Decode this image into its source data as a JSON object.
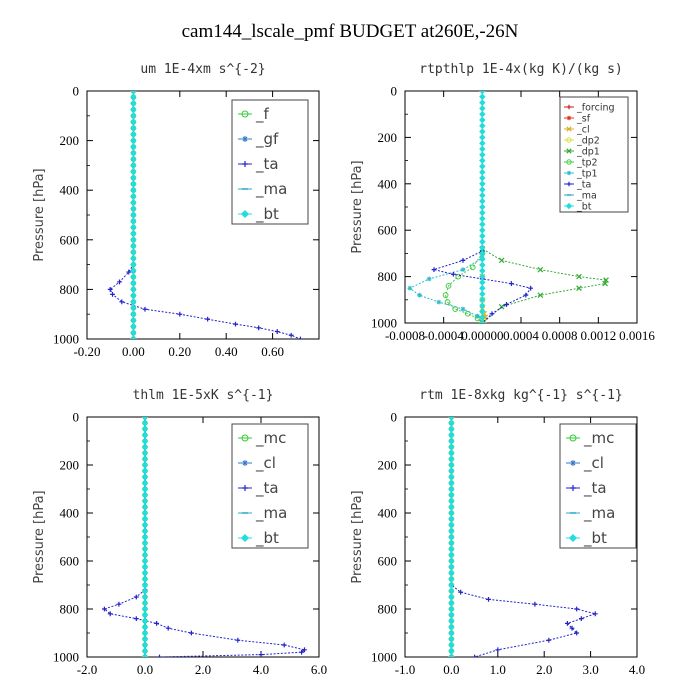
{
  "figure": {
    "title": "cam144_lscale_pmf  BUDGET at260E,-26N"
  },
  "chart_data": [
    {
      "type": "line",
      "title": "um  1E-4xm s^{-2}",
      "ylabel": "Pressure [hPa]",
      "xlabel": "",
      "xlim": [
        -0.2,
        0.8
      ],
      "ylim": [
        1000,
        0
      ],
      "x_tick_labels": [
        "-0.20",
        "0.00",
        "0.20",
        "0.40",
        "0.60"
      ],
      "x_tick_values": [
        -0.2,
        0.0,
        0.2,
        0.4,
        0.6
      ],
      "y_tick_labels": [
        "0",
        "200",
        "400",
        "600",
        "800",
        "1000"
      ],
      "y_tick_values": [
        0,
        200,
        400,
        600,
        800,
        1000
      ],
      "legend_position": "top-right",
      "legend": [
        "_f",
        "_gf",
        "_ta",
        "_ma",
        "_bt"
      ],
      "series": [
        {
          "name": "_f",
          "color": "#33cc33",
          "marker": "o",
          "x": [
            0,
            0,
            0,
            0,
            0,
            0,
            0,
            0,
            0,
            0,
            0
          ],
          "y": [
            0,
            100,
            200,
            300,
            400,
            500,
            600,
            700,
            800,
            900,
            1000
          ]
        },
        {
          "name": "_gf",
          "color": "#3377cc",
          "marker": "*",
          "x": [
            0,
            0,
            0,
            0,
            0,
            0,
            0,
            0,
            0,
            0,
            0
          ],
          "y": [
            0,
            100,
            200,
            300,
            400,
            500,
            600,
            700,
            800,
            900,
            1000
          ]
        },
        {
          "name": "_ta",
          "color": "#2222cc",
          "marker": "+",
          "x": [
            0,
            0,
            -0.02,
            -0.06,
            -0.1,
            -0.09,
            -0.05,
            0.05,
            0.2,
            0.32,
            0.44,
            0.54,
            0.62,
            0.68,
            0.72
          ],
          "y": [
            0,
            700,
            730,
            770,
            800,
            820,
            850,
            880,
            900,
            920,
            940,
            955,
            970,
            985,
            1000
          ]
        },
        {
          "name": "_ma",
          "color": "#33aacc",
          "marker": "-",
          "x": [
            0,
            0,
            0,
            0,
            0,
            0,
            0,
            0,
            0,
            0,
            0
          ],
          "y": [
            0,
            100,
            200,
            300,
            400,
            500,
            600,
            700,
            800,
            900,
            1000
          ]
        },
        {
          "name": "_bt",
          "color": "#22dddd",
          "marker": "D",
          "x": [
            0,
            0,
            0,
            0,
            0,
            0,
            0,
            0,
            0,
            0,
            0
          ],
          "y": [
            0,
            100,
            200,
            300,
            400,
            500,
            600,
            700,
            800,
            900,
            1000
          ]
        }
      ]
    },
    {
      "type": "line",
      "title": "rtpthlp  1E-4x(kg K)/(kg s)",
      "ylabel": "Pressure [hPa]",
      "xlabel": "",
      "xlim": [
        -0.0008,
        0.0016
      ],
      "ylim": [
        1000,
        0
      ],
      "x_tick_labels": [
        "-0.0008",
        "-0.0004",
        "0.00000",
        "0.0004",
        "0.0008",
        "0.0012",
        "0.0016"
      ],
      "x_tick_values": [
        -0.0008,
        -0.0004,
        0.0,
        0.0004,
        0.0008,
        0.0012,
        0.0016
      ],
      "y_tick_labels": [
        "0",
        "200",
        "400",
        "600",
        "800",
        "1000"
      ],
      "y_tick_values": [
        0,
        200,
        400,
        600,
        800,
        1000
      ],
      "legend_position": "top-right",
      "legend": [
        "_forcing",
        "_sf",
        "_cl",
        "_dp2",
        "_dp1",
        "_tp2",
        "_tp1",
        "_ta",
        "_ma",
        "_bt"
      ],
      "series": [
        {
          "name": "_forcing",
          "color": "#cc2222",
          "marker": "+",
          "x": [
            0,
            0,
            0,
            0,
            0,
            0,
            0,
            0,
            0,
            0,
            0
          ],
          "y": [
            0,
            100,
            200,
            300,
            400,
            500,
            600,
            700,
            800,
            900,
            1000
          ]
        },
        {
          "name": "_sf",
          "color": "#dd3322",
          "marker": "*",
          "x": [
            0,
            0,
            0,
            0,
            0,
            0,
            0,
            0,
            0,
            0,
            0
          ],
          "y": [
            0,
            100,
            200,
            300,
            400,
            500,
            600,
            700,
            800,
            900,
            1000
          ]
        },
        {
          "name": "_cl",
          "color": "#ddaa22",
          "marker": "x",
          "x": [
            0,
            0,
            0,
            0,
            2e-05,
            3e-05,
            2e-05,
            0
          ],
          "y": [
            0,
            800,
            900,
            940,
            960,
            975,
            990,
            1000
          ]
        },
        {
          "name": "_dp2",
          "color": "#dddd44",
          "marker": "o",
          "x": [
            0,
            0,
            0,
            0,
            1e-05,
            0
          ],
          "y": [
            0,
            900,
            950,
            980,
            990,
            1000
          ]
        },
        {
          "name": "_dp1",
          "color": "#33aa33",
          "marker": "x",
          "x": [
            0,
            0,
            0.0002,
            0.0006,
            0.001,
            0.00128,
            0.00127,
            0.001,
            0.0006,
            0.0002,
            0
          ],
          "y": [
            0,
            680,
            730,
            770,
            800,
            815,
            830,
            850,
            880,
            930,
            1000
          ]
        },
        {
          "name": "_tp2",
          "color": "#44cc44",
          "marker": "o",
          "x": [
            0,
            0,
            -0.0001,
            -0.00025,
            -0.00035,
            -0.00038,
            -0.00036,
            -0.00028,
            -0.00015,
            -5e-05,
            0
          ],
          "y": [
            0,
            700,
            760,
            800,
            840,
            880,
            910,
            940,
            960,
            980,
            1000
          ]
        },
        {
          "name": "_tp1",
          "color": "#33bbcc",
          "marker": "*",
          "x": [
            0,
            0,
            -0.0002,
            -0.00055,
            -0.00075,
            -0.00065,
            -0.00045,
            -0.0002,
            -5e-05,
            0
          ],
          "y": [
            0,
            720,
            770,
            810,
            850,
            880,
            910,
            940,
            970,
            1000
          ]
        },
        {
          "name": "_ta",
          "color": "#2222cc",
          "marker": "+",
          "x": [
            0,
            0,
            -0.0002,
            -0.0005,
            -0.0003,
            0,
            0.0003,
            0.0005,
            0.00045,
            0.00025,
            0.0001,
            0
          ],
          "y": [
            0,
            690,
            730,
            770,
            790,
            810,
            830,
            850,
            880,
            920,
            960,
            1000
          ]
        },
        {
          "name": "_ma",
          "color": "#33aacc",
          "marker": "-",
          "x": [
            0,
            0,
            0,
            0,
            0,
            0,
            0,
            0,
            0,
            0,
            0
          ],
          "y": [
            0,
            100,
            200,
            300,
            400,
            500,
            600,
            700,
            800,
            900,
            1000
          ]
        },
        {
          "name": "_bt",
          "color": "#22dddd",
          "marker": "D",
          "x": [
            0,
            0,
            0,
            0,
            0,
            0,
            0,
            0,
            0,
            0,
            0
          ],
          "y": [
            0,
            100,
            200,
            300,
            400,
            500,
            600,
            700,
            800,
            900,
            1000
          ]
        }
      ]
    },
    {
      "type": "line",
      "title": "thlm  1E-5xK s^{-1}",
      "ylabel": "Pressure [hPa]",
      "xlabel": "",
      "xlim": [
        -2.0,
        6.0
      ],
      "ylim": [
        1000,
        0
      ],
      "x_tick_labels": [
        "-2.0",
        "0.0",
        "2.0",
        "4.0",
        "6.0"
      ],
      "x_tick_values": [
        -2.0,
        0.0,
        2.0,
        4.0,
        6.0
      ],
      "y_tick_labels": [
        "0",
        "200",
        "400",
        "600",
        "800",
        "1000"
      ],
      "y_tick_values": [
        0,
        200,
        400,
        600,
        800,
        1000
      ],
      "legend_position": "top-right",
      "legend": [
        "_mc",
        "_cl",
        "_ta",
        "_ma",
        "_bt"
      ],
      "series": [
        {
          "name": "_mc",
          "color": "#33cc33",
          "marker": "o",
          "x": [
            0,
            0,
            0,
            0,
            0,
            0,
            0,
            0,
            0,
            0,
            0
          ],
          "y": [
            0,
            100,
            200,
            300,
            400,
            500,
            600,
            700,
            800,
            900,
            1000
          ]
        },
        {
          "name": "_cl",
          "color": "#3377cc",
          "marker": "*",
          "x": [
            0,
            0,
            0,
            0,
            0,
            0,
            0,
            0,
            0,
            0,
            0
          ],
          "y": [
            0,
            100,
            200,
            300,
            400,
            500,
            600,
            700,
            800,
            900,
            1000
          ]
        },
        {
          "name": "_ta",
          "color": "#2222cc",
          "marker": "+",
          "x": [
            0,
            0,
            -0.3,
            -0.9,
            -1.4,
            -1.2,
            -0.3,
            0.4,
            0.8,
            1.6,
            3.2,
            4.8,
            5.5,
            5.4,
            4.0,
            0.5
          ],
          "y": [
            0,
            720,
            750,
            780,
            800,
            820,
            840,
            860,
            880,
            900,
            930,
            950,
            970,
            980,
            990,
            1000
          ]
        },
        {
          "name": "_ma",
          "color": "#33aacc",
          "marker": "-",
          "x": [
            0,
            0,
            0,
            0,
            0,
            0,
            0,
            0,
            0,
            0,
            0
          ],
          "y": [
            0,
            100,
            200,
            300,
            400,
            500,
            600,
            700,
            800,
            900,
            1000
          ]
        },
        {
          "name": "_bt",
          "color": "#22dddd",
          "marker": "D",
          "x": [
            0,
            0,
            0,
            0,
            0,
            0,
            0,
            0,
            0,
            0,
            0
          ],
          "y": [
            0,
            100,
            200,
            300,
            400,
            500,
            600,
            700,
            800,
            900,
            1000
          ]
        }
      ]
    },
    {
      "type": "line",
      "title": "rtm  1E-8xkg kg^{-1} s^{-1}",
      "ylabel": "Pressure [hPa]",
      "xlabel": "",
      "xlim": [
        -1.0,
        4.0
      ],
      "ylim": [
        1000,
        0
      ],
      "x_tick_labels": [
        "-1.0",
        "0.0",
        "1.0",
        "2.0",
        "3.0",
        "4.0"
      ],
      "x_tick_values": [
        -1.0,
        0.0,
        1.0,
        2.0,
        3.0,
        4.0
      ],
      "y_tick_labels": [
        "0",
        "200",
        "400",
        "600",
        "800",
        "1000"
      ],
      "y_tick_values": [
        0,
        200,
        400,
        600,
        800,
        1000
      ],
      "legend_position": "top-right",
      "legend": [
        "_mc",
        "_cl",
        "_ta",
        "_ma",
        "_bt"
      ],
      "series": [
        {
          "name": "_mc",
          "color": "#33cc33",
          "marker": "o",
          "x": [
            0,
            0,
            0,
            0,
            0,
            0,
            0,
            0,
            0,
            0,
            0
          ],
          "y": [
            0,
            100,
            200,
            300,
            400,
            500,
            600,
            700,
            800,
            900,
            1000
          ]
        },
        {
          "name": "_cl",
          "color": "#3377cc",
          "marker": "*",
          "x": [
            0,
            0,
            0,
            0,
            0,
            0,
            0,
            0,
            0,
            0,
            0
          ],
          "y": [
            0,
            100,
            200,
            300,
            400,
            500,
            600,
            700,
            800,
            900,
            1000
          ]
        },
        {
          "name": "_ta",
          "color": "#2222cc",
          "marker": "+",
          "x": [
            0,
            0,
            0.2,
            0.8,
            1.8,
            2.7,
            3.1,
            2.8,
            2.5,
            2.6,
            2.7,
            2.1,
            1.0,
            0.5
          ],
          "y": [
            0,
            700,
            730,
            760,
            780,
            800,
            820,
            840,
            860,
            880,
            900,
            930,
            970,
            1000
          ]
        },
        {
          "name": "_ma",
          "color": "#33aacc",
          "marker": "-",
          "x": [
            0,
            0,
            0,
            0,
            0,
            0,
            0,
            0,
            0,
            0,
            0
          ],
          "y": [
            0,
            100,
            200,
            300,
            400,
            500,
            600,
            700,
            800,
            900,
            1000
          ]
        },
        {
          "name": "_bt",
          "color": "#22dddd",
          "marker": "D",
          "x": [
            0,
            0,
            0,
            0,
            0,
            0,
            0,
            0,
            0,
            0,
            0
          ],
          "y": [
            0,
            100,
            200,
            300,
            400,
            500,
            600,
            700,
            800,
            900,
            1000
          ]
        }
      ]
    }
  ]
}
